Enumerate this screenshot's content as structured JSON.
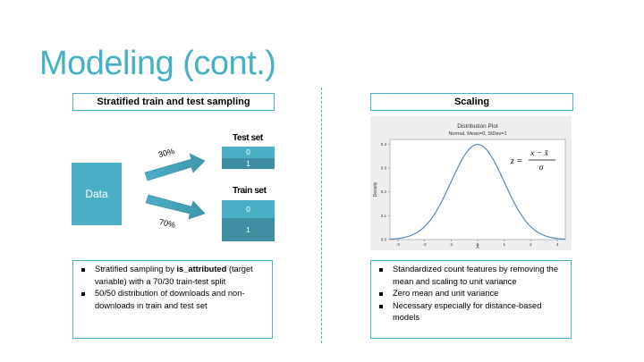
{
  "slide": {
    "title": "Modeling (cont.)"
  },
  "left_panel": {
    "header": "Stratified train and test sampling",
    "data_label": "Data",
    "test_set": {
      "label": "Test set",
      "rows": [
        "0",
        "1"
      ],
      "percent": "30%"
    },
    "train_set": {
      "label": "Train set",
      "rows": [
        "0",
        "1"
      ],
      "percent": "70%"
    },
    "bullets": [
      {
        "pre": "Stratified sampling by ",
        "bold": "is_attributed",
        "post": " (target variable) with a 70/30 train-test split"
      },
      {
        "text": "50/50 distribution of downloads and non-downloads in train and test set"
      }
    ]
  },
  "right_panel": {
    "header": "Scaling",
    "bullets": [
      "Standardized count features by removing the mean and scaling to unit variance",
      "Zero mean and unit variance",
      "Necessary especially for distance-based models"
    ]
  },
  "chart_data": {
    "type": "line",
    "title": "Distribution Plot",
    "subtitle": "Normal, Mean=0, StDev=1",
    "xlabel": "X",
    "ylabel": "Density",
    "xlim": [
      -3.3,
      3.3
    ],
    "ylim": [
      0,
      0.42
    ],
    "xticks": [
      -3,
      -2,
      -1,
      0,
      1,
      2,
      3
    ],
    "yticks": [
      0.0,
      0.1,
      0.2,
      0.3,
      0.4
    ],
    "series": [
      {
        "name": "Normal(0,1) density",
        "mean": 0,
        "stdev": 1
      }
    ],
    "formula": {
      "lhs": "z =",
      "numerator": "x − x̄",
      "denominator": "σ"
    },
    "line_color": "#4A7FB5"
  },
  "colors": {
    "accent": "#4BAFC8",
    "accent_dark": "#3F8EA2",
    "title": "#45B0C6"
  }
}
